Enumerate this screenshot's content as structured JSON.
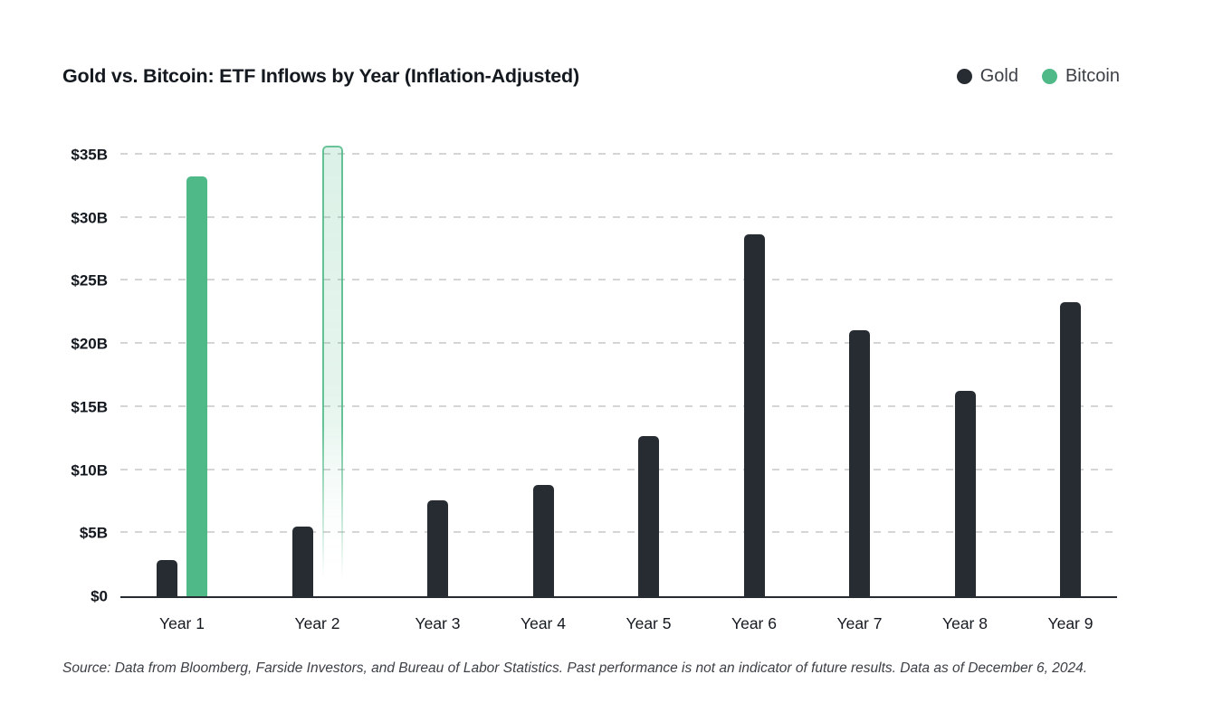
{
  "chart_data": {
    "type": "bar",
    "title": "Gold vs. Bitcoin: ETF Inflows by Year (Inflation-Adjusted)",
    "categories": [
      "Year 1",
      "Year 2",
      "Year 3",
      "Year 4",
      "Year 5",
      "Year 6",
      "Year 7",
      "Year 8",
      "Year 9"
    ],
    "series": [
      {
        "name": "Gold",
        "color": "#272c33",
        "values": [
          2.9,
          5.5,
          7.6,
          8.8,
          12.7,
          28.7,
          21.1,
          16.3,
          23.3
        ]
      },
      {
        "name": "Bitcoin",
        "color": "#4fb988",
        "values": [
          33.3,
          35.7,
          null,
          null,
          null,
          null,
          null,
          null,
          null
        ],
        "projected": [
          false,
          true,
          false,
          false,
          false,
          false,
          false,
          false,
          false
        ]
      }
    ],
    "yticks": [
      {
        "value": 0,
        "label": "$0"
      },
      {
        "value": 5,
        "label": "$5B"
      },
      {
        "value": 10,
        "label": "$10B"
      },
      {
        "value": 15,
        "label": "$15B"
      },
      {
        "value": 20,
        "label": "$20B"
      },
      {
        "value": 25,
        "label": "$25B"
      },
      {
        "value": 30,
        "label": "$30B"
      },
      {
        "value": 35,
        "label": "$35B"
      }
    ],
    "ylim": [
      0,
      36
    ],
    "unit": "USD billions",
    "grid": "horizontal-dashed",
    "legend_position": "top-right",
    "colors": {
      "gold_bar": "#272c33",
      "bitcoin_bar": "#4fb988",
      "gridline": "#d5d5d5",
      "axis": "#272c33",
      "title_text": "#14181f",
      "legend_text": "#3c4046",
      "source_text": "#3c4046",
      "background": "#ffffff"
    },
    "source": "Source: Data from Bloomberg, Farside Investors, and Bureau of Labor Statistics. Past performance is not an indicator of future results. Data as of December 6, 2024."
  }
}
